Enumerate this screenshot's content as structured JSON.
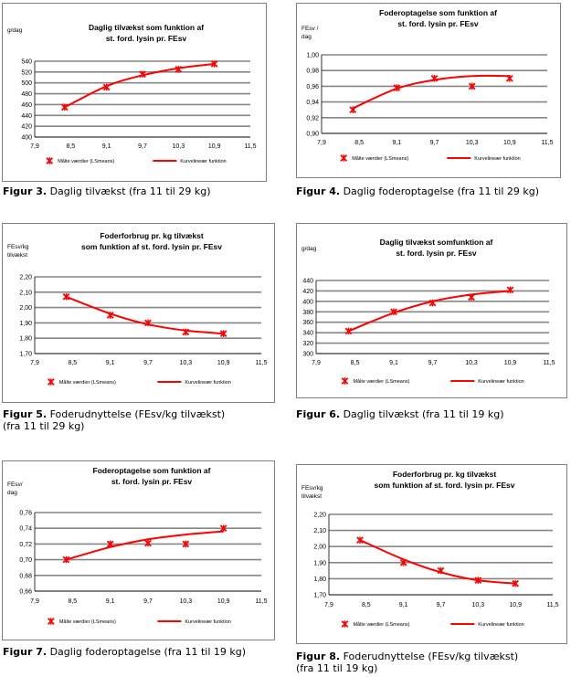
{
  "colors": {
    "series": "#ff0000",
    "grid": "#868686",
    "frame": "#808080"
  },
  "figures": [
    {
      "caption_num": "Figur 3.",
      "caption_text": " Daglig tilvækst (fra 11 til 29 kg)",
      "caption_text2": ""
    },
    {
      "caption_num": "Figur 4.",
      "caption_text": " Daglig foderoptagelse (fra 11 til 29 kg)",
      "caption_text2": ""
    },
    {
      "caption_num": "Figur 5.",
      "caption_text": " Foderudnyttelse (FEsv/kg tilvækst)",
      "caption_text2": "(fra 11 til 29 kg)"
    },
    {
      "caption_num": "Figur 6.",
      "caption_text": " Daglig tilvækst (fra 11 til 19 kg)",
      "caption_text2": ""
    },
    {
      "caption_num": "Figur 7.",
      "caption_text": " Daglig foderoptagelse (fra 11 til 19 kg)",
      "caption_text2": ""
    },
    {
      "caption_num": "Figur 8.",
      "caption_text": " Foderudnyttelse (FEsv/kg tilvækst)",
      "caption_text2": "(fra 11 til 19 kg)"
    }
  ],
  "chart_data": [
    {
      "type": "scatter",
      "title": [
        "Daglig tilvækst som funktion af",
        "st. ford. lysin pr. FEsv"
      ],
      "ylabel": [
        "g/dag"
      ],
      "x_ticks": [
        "7,9",
        "8,5",
        "9,1",
        "9,7",
        "10,3",
        "10,9",
        "11,5"
      ],
      "y_ticks": [
        "400",
        "420",
        "440",
        "460",
        "480",
        "500",
        "520",
        "540"
      ],
      "xlim": [
        7.9,
        11.5
      ],
      "ylim": [
        400,
        540
      ],
      "legend": [
        "Målte værdier (LSmeans)",
        "Kurvelineær funktion"
      ],
      "x": [
        8.4,
        9.1,
        9.7,
        10.3,
        10.9
      ],
      "measured": [
        455,
        492,
        516,
        525,
        535
      ],
      "curve": [
        455,
        494,
        514,
        527,
        535
      ]
    },
    {
      "type": "scatter",
      "title": [
        "Foderoptagelse som funktion af",
        "st. ford. lysin pr. FEsv"
      ],
      "ylabel": [
        "FEsv /",
        "dag"
      ],
      "x_ticks": [
        "7,9",
        "8,5",
        "9,1",
        "9,7",
        "10,3",
        "10,9",
        "11,5"
      ],
      "y_ticks": [
        "0,90",
        "0,92",
        "0,94",
        "0,96",
        "0,98",
        "1,00"
      ],
      "xlim": [
        7.9,
        11.5
      ],
      "ylim": [
        0.9,
        1.0
      ],
      "legend": [
        "Målte værdier (LSmeans)",
        "Kurvelineær funktion"
      ],
      "x": [
        8.4,
        9.1,
        9.7,
        10.3,
        10.9
      ],
      "measured": [
        0.93,
        0.958,
        0.97,
        0.96,
        0.97
      ],
      "curve": [
        0.932,
        0.957,
        0.968,
        0.973,
        0.973
      ]
    },
    {
      "type": "scatter",
      "title": [
        "Foderforbrug pr. kg tilvækst",
        "som funktion af st. ford. lysin pr. FEsv"
      ],
      "ylabel": [
        "FEsv/kg",
        "tilvækst"
      ],
      "x_ticks": [
        "7,9",
        "8,5",
        "9,1",
        "9,7",
        "10,3",
        "10,9",
        "11,5"
      ],
      "y_ticks": [
        "1,70",
        "1,80",
        "1,90",
        "2,00",
        "2,10",
        "2,20"
      ],
      "xlim": [
        7.9,
        11.5
      ],
      "ylim": [
        1.7,
        2.2
      ],
      "legend": [
        "Målte værdier (LSmeans)",
        "Kurvelineær funktion"
      ],
      "x": [
        8.4,
        9.1,
        9.7,
        10.3,
        10.9
      ],
      "measured": [
        2.07,
        1.95,
        1.9,
        1.84,
        1.83
      ],
      "curve": [
        2.07,
        1.96,
        1.89,
        1.85,
        1.83
      ]
    },
    {
      "type": "scatter",
      "title": [
        "Daglig tilvækst somfunktion af",
        "st. ford. lysin pr. FEsv"
      ],
      "ylabel": [
        "g/dag"
      ],
      "x_ticks": [
        "7,9",
        "8,5",
        "9,1",
        "9,7",
        "10,3",
        "10,9",
        "11,5"
      ],
      "y_ticks": [
        "300",
        "320",
        "340",
        "360",
        "380",
        "400",
        "420",
        "440"
      ],
      "xlim": [
        7.9,
        11.5
      ],
      "ylim": [
        300,
        440
      ],
      "legend": [
        "Målte værdier (LSmeans)",
        "Kurvelineær funktion"
      ],
      "x": [
        8.4,
        9.1,
        9.7,
        10.3,
        10.9
      ],
      "measured": [
        343,
        380,
        397,
        408,
        422
      ],
      "curve": [
        343,
        378,
        400,
        413,
        420
      ]
    },
    {
      "type": "scatter",
      "title": [
        "Foderoptagelse som funktion af",
        "st. ford. lysin pr. FEsv"
      ],
      "ylabel": [
        "FEsv/",
        "dag"
      ],
      "x_ticks": [
        "7,9",
        "8,5",
        "9,1",
        "9,7",
        "10,3",
        "10,9",
        "11,5"
      ],
      "y_ticks": [
        "0,66",
        "0,68",
        "0,70",
        "0,72",
        "0,74",
        "0,76"
      ],
      "xlim": [
        7.9,
        11.5
      ],
      "ylim": [
        0.66,
        0.76
      ],
      "legend": [
        "Målte værdier (LSmeans)",
        "Kurvelineær funktion"
      ],
      "x": [
        8.4,
        9.1,
        9.7,
        10.3,
        10.9
      ],
      "measured": [
        0.7,
        0.72,
        0.721,
        0.72,
        0.74
      ],
      "curve": [
        0.7,
        0.716,
        0.726,
        0.732,
        0.736
      ]
    },
    {
      "type": "scatter",
      "title": [
        "Foderforbrug pr. kg tilvækst",
        "som funktion af st. ford. lysin pr. FEsv"
      ],
      "ylabel": [
        "FEsv/kg",
        "tilvækst"
      ],
      "x_ticks": [
        "7,9",
        "8,5",
        "9,1",
        "9,7",
        "10,3",
        "10,9",
        "11,5"
      ],
      "y_ticks": [
        "1,70",
        "1,80",
        "1,90",
        "2,00",
        "2,10",
        "2,20"
      ],
      "xlim": [
        7.9,
        11.5
      ],
      "ylim": [
        1.7,
        2.2
      ],
      "legend": [
        "Målte værdier (LSmeans)",
        "Kurvelineær funktion"
      ],
      "x": [
        8.4,
        9.1,
        9.7,
        10.3,
        10.9
      ],
      "measured": [
        2.04,
        1.9,
        1.85,
        1.79,
        1.77
      ],
      "curve": [
        2.04,
        1.92,
        1.84,
        1.79,
        1.77
      ]
    }
  ]
}
